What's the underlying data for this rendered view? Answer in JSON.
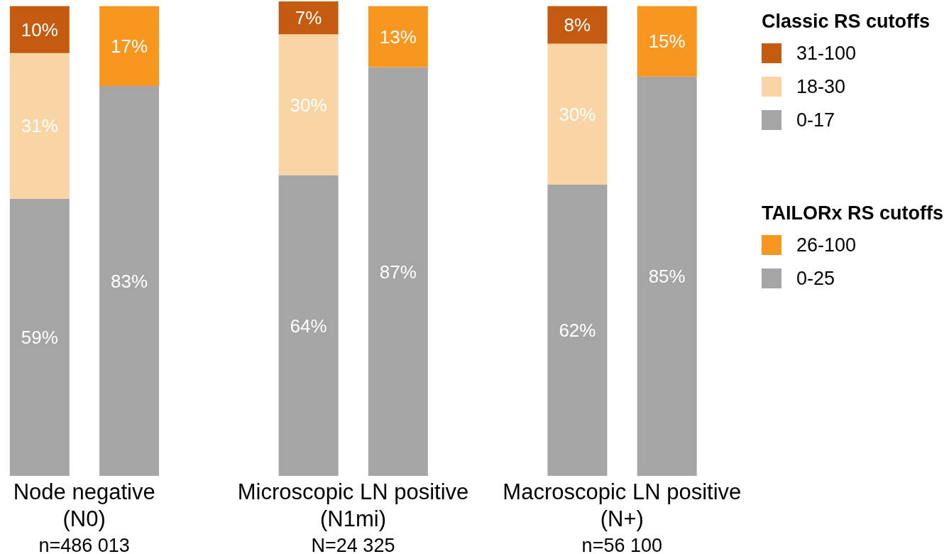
{
  "chart_data": {
    "type": "bar",
    "stacked": true,
    "categories": [
      null,
      "Node negative\n(N0)\nn=486 013",
      null,
      null,
      null,
      null,
      null,
      "Microscopic LN positive\n(N1mi)\nN=24 325",
      null,
      null,
      null,
      null,
      null,
      "Macroscopic LN positive\n(N+)\nn=56 100",
      null
    ],
    "series": [
      {
        "name": "0-17",
        "color": "#a5a5a5",
        "values": [
          59,
          null,
          null,
          null,
          null,
          null,
          64,
          null,
          null,
          null,
          null,
          null,
          62,
          null,
          null
        ],
        "value_labels": [
          "59%",
          null,
          null,
          null,
          null,
          null,
          "64%",
          null,
          null,
          null,
          null,
          null,
          "62%",
          null,
          null
        ]
      },
      {
        "name": "18-30",
        "color": "#f9d4a4",
        "values": [
          31,
          null,
          null,
          null,
          null,
          null,
          30,
          null,
          null,
          null,
          null,
          null,
          30,
          null,
          null
        ],
        "value_labels": [
          "31%",
          null,
          null,
          null,
          null,
          null,
          "30%",
          null,
          null,
          null,
          null,
          null,
          "30%",
          null,
          null
        ]
      },
      {
        "name": "31-100",
        "color": "#c55a11",
        "values": [
          10,
          null,
          null,
          null,
          null,
          null,
          7,
          null,
          null,
          null,
          null,
          null,
          8,
          null,
          null
        ],
        "value_labels": [
          "10%",
          null,
          null,
          null,
          null,
          null,
          "7%",
          null,
          null,
          null,
          null,
          null,
          "8%",
          null,
          null
        ]
      },
      {
        "name": "0-25",
        "color": "#a5a5a5",
        "values": [
          null,
          null,
          83,
          null,
          null,
          null,
          null,
          null,
          87,
          null,
          null,
          null,
          null,
          null,
          85
        ],
        "value_labels": [
          null,
          null,
          "83%",
          null,
          null,
          null,
          null,
          null,
          "87%",
          null,
          null,
          null,
          null,
          null,
          "85%"
        ]
      },
      {
        "name": "26-100",
        "color": "#f7971f",
        "values": [
          null,
          null,
          17,
          null,
          null,
          null,
          null,
          null,
          13,
          null,
          null,
          null,
          null,
          null,
          15
        ],
        "value_labels": [
          null,
          null,
          "17%",
          null,
          null,
          null,
          null,
          null,
          "13%",
          null,
          null,
          null,
          null,
          null,
          "15%"
        ]
      }
    ],
    "legend": "top right",
    "legend_title": [
      "Classic RS cutoffs",
      "TAILORx RS cutoffs"
    ]
  }
}
